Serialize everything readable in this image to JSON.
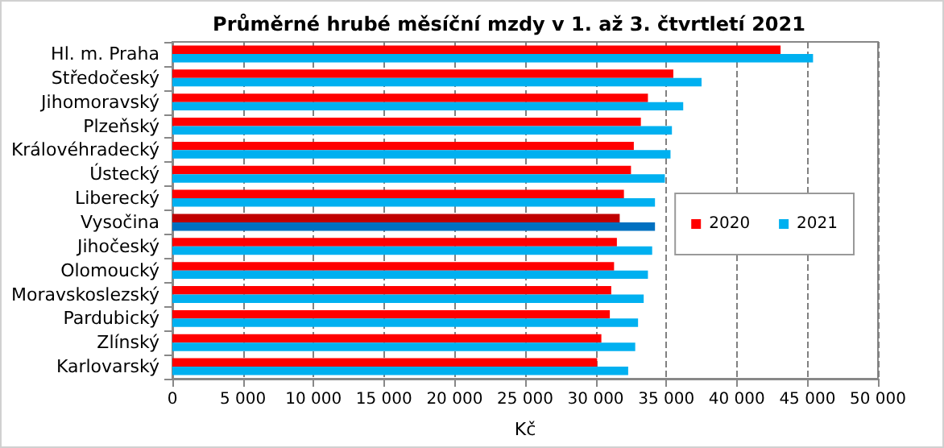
{
  "chart_data": {
    "type": "bar",
    "orientation": "horizontal",
    "title": "Průměrné hrubé měsíční mzdy v 1. až 3. čtvrtletí 2021",
    "xlabel": "Kč",
    "categories": [
      "Hl. m. Praha",
      "Středočeský",
      "Jihomoravský",
      "Plzeňský",
      "Královéhradecký",
      "Ústecký",
      "Liberecký",
      "Vysočina",
      "Jihočeský",
      "Olomoucký",
      "Moravskoslezský",
      "Pardubický",
      "Zlínský",
      "Karlovarský"
    ],
    "series": [
      {
        "name": "2020",
        "color": "#ff0000",
        "colors": [
          "#ff0000",
          "#ff0000",
          "#ff0000",
          "#ff0000",
          "#ff0000",
          "#ff0000",
          "#ff0000",
          "#c00000",
          "#ff0000",
          "#ff0000",
          "#ff0000",
          "#ff0000",
          "#ff0000",
          "#ff0000"
        ],
        "values": [
          43100,
          35500,
          33700,
          33200,
          32700,
          32500,
          32000,
          31700,
          31500,
          31300,
          31100,
          31000,
          30400,
          30100
        ]
      },
      {
        "name": "2021",
        "color": "#00b0f0",
        "colors": [
          "#00b0f0",
          "#00b0f0",
          "#00b0f0",
          "#00b0f0",
          "#00b0f0",
          "#00b0f0",
          "#00b0f0",
          "#0070c0",
          "#00b0f0",
          "#00b0f0",
          "#00b0f0",
          "#00b0f0",
          "#00b0f0",
          "#00b0f0"
        ],
        "values": [
          45400,
          37500,
          36200,
          35400,
          35300,
          34900,
          34200,
          34200,
          34000,
          33700,
          33400,
          33000,
          32800,
          32300
        ]
      }
    ],
    "xlim": [
      0,
      50000
    ],
    "xticks": [
      0,
      {
        "value": 5000,
        "label": "5 000"
      },
      {
        "value": 10000,
        "label": "10 000"
      },
      {
        "value": 15000,
        "label": "15 000"
      },
      {
        "value": 20000,
        "label": "20 000"
      },
      {
        "value": 25000,
        "label": "25 000"
      },
      {
        "value": 30000,
        "label": "30 000"
      },
      {
        "value": 35000,
        "label": "35 000"
      },
      {
        "value": 40000,
        "label": "40 000"
      },
      {
        "value": 45000,
        "label": "45 000"
      },
      {
        "value": 50000,
        "label": "50 000"
      }
    ],
    "grid": "x",
    "legend": "right"
  }
}
